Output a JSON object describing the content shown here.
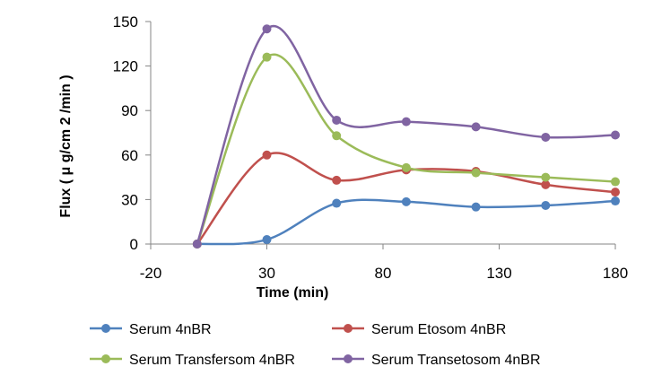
{
  "chart_data": {
    "type": "line",
    "title": "",
    "xlabel": "Time (min)",
    "ylabel": "Flux ( μ g/cm 2 /min )",
    "xlim": [
      -20,
      180
    ],
    "ylim": [
      0,
      150
    ],
    "xticks": [
      "-20",
      "30",
      "80",
      "130",
      "180"
    ],
    "yticks": [
      "0",
      "30",
      "60",
      "90",
      "120",
      "150"
    ],
    "grid": false,
    "legend_position": "bottom",
    "x": [
      0,
      30,
      60,
      90,
      120,
      150,
      180
    ],
    "series": [
      {
        "name": "Serum 4nBR",
        "color": "#4f81bd",
        "values": [
          0,
          3,
          27.5,
          28.5,
          25,
          26,
          29
        ]
      },
      {
        "name": "Serum Etosom 4nBR",
        "color": "#c0504d",
        "values": [
          0,
          60,
          43,
          50,
          49,
          40,
          35
        ]
      },
      {
        "name": "Serum Transfersom 4nBR",
        "color": "#9bbb59",
        "values": [
          0,
          126,
          73,
          51.5,
          48,
          45,
          42
        ]
      },
      {
        "name": "Serum Transetosom 4nBR",
        "color": "#8064a2",
        "values": [
          0,
          145,
          83.5,
          82.5,
          79,
          72,
          73.5
        ]
      }
    ]
  }
}
